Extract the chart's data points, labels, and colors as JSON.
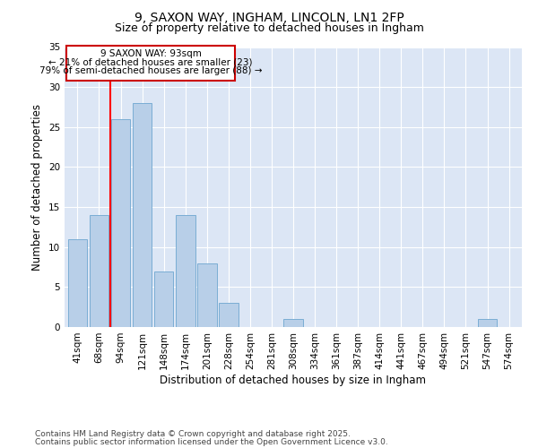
{
  "title": "9, SAXON WAY, INGHAM, LINCOLN, LN1 2FP",
  "subtitle": "Size of property relative to detached houses in Ingham",
  "xlabel": "Distribution of detached houses by size in Ingham",
  "ylabel": "Number of detached properties",
  "bar_color": "#b8cfe8",
  "bar_edge_color": "#7aadd4",
  "background_color": "#dce6f5",
  "categories": [
    "41sqm",
    "68sqm",
    "94sqm",
    "121sqm",
    "148sqm",
    "174sqm",
    "201sqm",
    "228sqm",
    "254sqm",
    "281sqm",
    "308sqm",
    "334sqm",
    "361sqm",
    "387sqm",
    "414sqm",
    "441sqm",
    "467sqm",
    "494sqm",
    "521sqm",
    "547sqm",
    "574sqm"
  ],
  "values": [
    11,
    14,
    26,
    28,
    7,
    14,
    8,
    3,
    0,
    0,
    1,
    0,
    0,
    0,
    0,
    0,
    0,
    0,
    0,
    1,
    0
  ],
  "ylim": [
    0,
    35
  ],
  "yticks": [
    0,
    5,
    10,
    15,
    20,
    25,
    30,
    35
  ],
  "property_line_idx": 2,
  "property_line_label": "9 SAXON WAY: 93sqm",
  "annotation_line1": "← 21% of detached houses are smaller (23)",
  "annotation_line2": "79% of semi-detached houses are larger (88) →",
  "box_color": "#cc0000",
  "footer_line1": "Contains HM Land Registry data © Crown copyright and database right 2025.",
  "footer_line2": "Contains public sector information licensed under the Open Government Licence v3.0.",
  "title_fontsize": 10,
  "subtitle_fontsize": 9,
  "axis_label_fontsize": 8.5,
  "tick_fontsize": 7.5,
  "annotation_fontsize": 7.5,
  "footer_fontsize": 6.5
}
